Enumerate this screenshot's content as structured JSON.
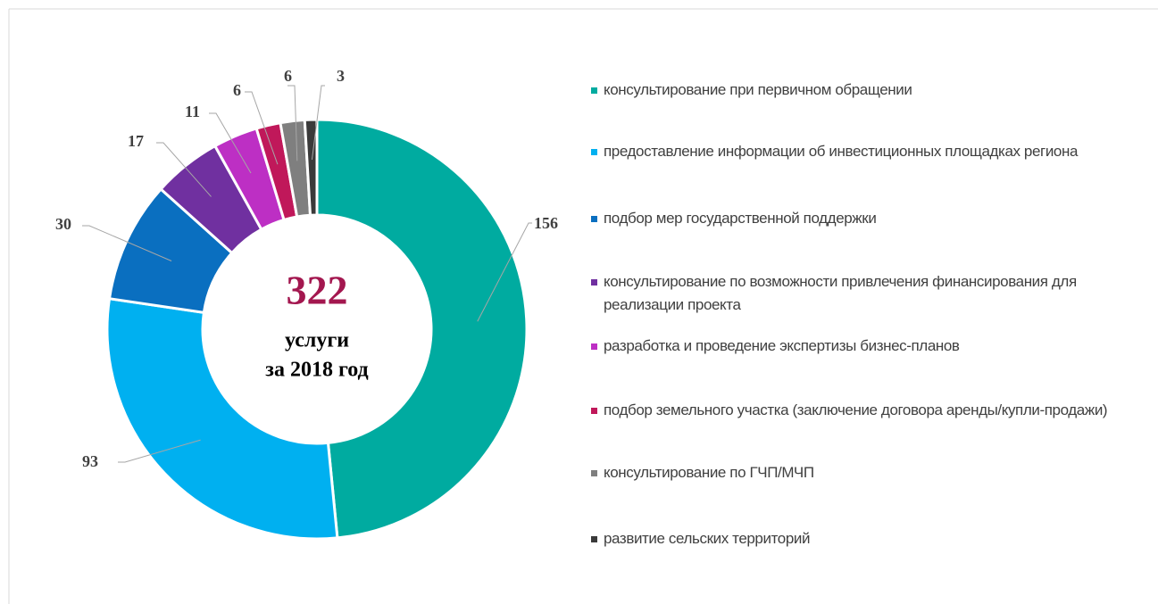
{
  "chart_data": {
    "type": "donut",
    "total": 322,
    "center_lines": [
      "услуги",
      "за 2018 год"
    ],
    "categories": [
      "консультирование при первичном обращении",
      "предоставление информации об инвестиционных площадках региона",
      "подбор мер государственной поддержки",
      "консультирование по возможности привлечения финансирования для реализации проекта",
      "разработка и проведение экспертизы бизнес-планов",
      "подбор земельного участка (заключение договора аренды/купли-продажи)",
      "консультирование по ГЧП/МЧП",
      "развитие сельских территорий"
    ],
    "values": [
      156,
      93,
      30,
      17,
      11,
      6,
      6,
      3
    ],
    "colors": [
      "#00aba0",
      "#00b0f0",
      "#0a6fc0",
      "#7030a0",
      "#bd2fc4",
      "#c0185a",
      "#7f7f7f",
      "#3a3a3a"
    ],
    "legend": "right"
  }
}
